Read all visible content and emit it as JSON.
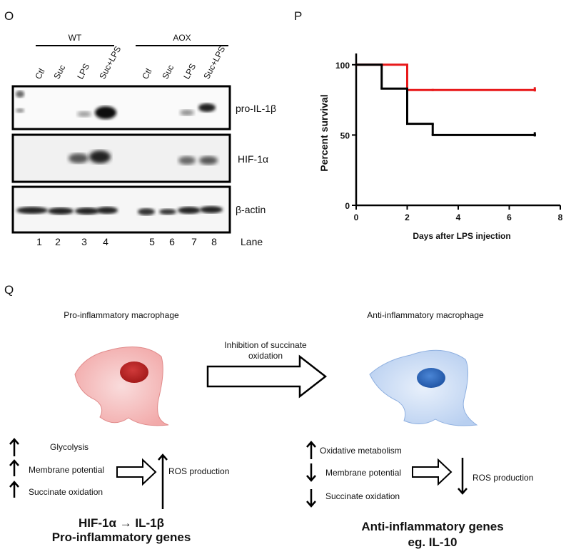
{
  "panels": {
    "o": "O",
    "p": "P",
    "q": "Q"
  },
  "blot": {
    "groups": [
      "WT",
      "AOX"
    ],
    "lanes": [
      "Ctl",
      "Suc",
      "LPS",
      "Suc+LPS",
      "Ctl",
      "Suc",
      "LPS",
      "Suc+LPS"
    ],
    "bands": [
      "pro-IL-1β",
      "HIF-1α",
      "β-actin"
    ],
    "lane_numbers": [
      1,
      2,
      3,
      4,
      5,
      6,
      7,
      8
    ],
    "lane_label": "Lane"
  },
  "chart_data": {
    "type": "line",
    "step": "post",
    "y_label": "Percent survival",
    "x_label": "Days after LPS injection",
    "x": [
      0,
      1,
      2,
      3,
      7
    ],
    "series": [
      {
        "color": "#e8191a",
        "values": [
          100,
          100,
          82,
          82,
          82
        ]
      },
      {
        "color": "#000000",
        "values": [
          100,
          83,
          58,
          50,
          50
        ]
      }
    ],
    "xlim": [
      0,
      8
    ],
    "xticks": [
      0,
      2,
      4,
      6,
      8
    ],
    "ylim": [
      0,
      108
    ],
    "yticks": [
      0,
      50,
      100
    ],
    "grid": false
  },
  "diagram": {
    "left_title": "Pro-inflammatory macrophage",
    "right_title": "Anti-inflammatory macrophage",
    "arrow_label": [
      "Inhibition of succinate",
      "oxidation"
    ],
    "left_items": [
      "Glycolysis",
      "Membrane potential",
      "Succinate oxidation"
    ],
    "left_result": "ROS production",
    "left_genes": [
      "HIF-1α → IL-1β",
      "Pro-inflammatory genes"
    ],
    "right_items": [
      "Oxidative metabolism",
      "Membrane potential",
      "Succinate oxidation"
    ],
    "right_result": "ROS production",
    "right_genes": [
      "Anti-inflammatory genes",
      "eg. IL-10"
    ]
  }
}
